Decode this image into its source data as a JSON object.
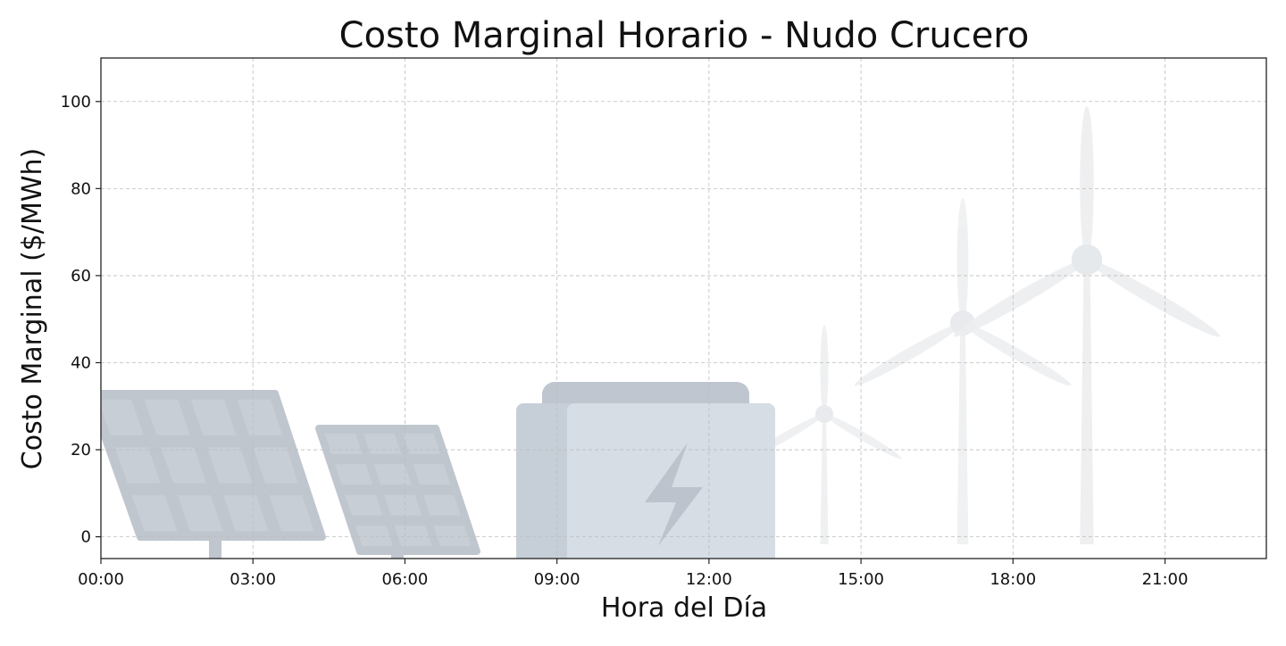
{
  "chart_data": {
    "type": "line",
    "title": "Costo Marginal Horario - Nudo Crucero",
    "xlabel": "Hora del Día",
    "ylabel": "Costo Marginal ($/MWh)",
    "x_ticks": [
      "00:00",
      "03:00",
      "06:00",
      "09:00",
      "12:00",
      "15:00",
      "18:00",
      "21:00"
    ],
    "y_ticks": [
      0,
      20,
      40,
      60,
      80,
      100
    ],
    "xlim": [
      "00:00",
      "23:00"
    ],
    "ylim": [
      -5,
      110
    ],
    "grid": true,
    "series": [],
    "background_illustration": [
      "solar-panels",
      "battery",
      "wind-turbines"
    ],
    "colors": {
      "panel": "#c0c6cd",
      "panel_cell": "#c8ced6",
      "battery_front": "#d6dde4",
      "battery_back": "#c6cfd8",
      "battery_top": "#bfc6cf",
      "bolt": "#bcc3cc",
      "turbine": "#eceef0",
      "grid": "#bdbdbd",
      "axis": "#222222"
    }
  }
}
